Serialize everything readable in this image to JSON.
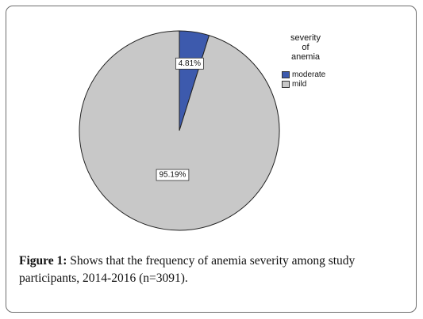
{
  "chart_data": {
    "type": "pie",
    "title": "",
    "legend_title": "severity\nof\nanemia",
    "legend_position": "right",
    "slices": [
      {
        "label": "moderate",
        "value": 4.81,
        "display": "4.81%",
        "color": "#3d5aad"
      },
      {
        "label": "mild",
        "value": 95.19,
        "display": "95.19%",
        "color": "#c8c8c8"
      }
    ]
  },
  "caption": {
    "lead": "Figure 1:",
    "text": " Shows that the frequency of anemia severity among study participants, 2014-2016 (n=3091)."
  }
}
